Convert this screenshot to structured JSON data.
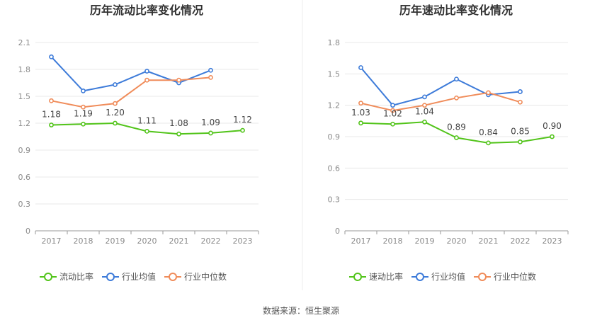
{
  "chart_data": [
    {
      "type": "line",
      "title": "历年流动比率变化情况",
      "categories": [
        "2017",
        "2018",
        "2019",
        "2020",
        "2021",
        "2022",
        "2023"
      ],
      "ylim": [
        0,
        2.1
      ],
      "yticks": [
        "0",
        "0.3",
        "0.6",
        "0.9",
        "1.2",
        "1.5",
        "1.8",
        "2.1"
      ],
      "grid": true,
      "legend_position": "bottom",
      "series": [
        {
          "name": "流动比率",
          "color": "#52c41a",
          "values": [
            1.18,
            1.19,
            1.2,
            1.11,
            1.08,
            1.09,
            1.12
          ],
          "labels": [
            "1.18",
            "1.19",
            "1.20",
            "1.11",
            "1.08",
            "1.09",
            "1.12"
          ]
        },
        {
          "name": "行业均值",
          "color": "#3d7bd9",
          "values": [
            1.94,
            1.56,
            1.63,
            1.78,
            1.65,
            1.79,
            null
          ]
        },
        {
          "name": "行业中位数",
          "color": "#f08c5a",
          "values": [
            1.45,
            1.38,
            1.42,
            1.68,
            1.68,
            1.71,
            null
          ]
        }
      ]
    },
    {
      "type": "line",
      "title": "历年速动比率变化情况",
      "categories": [
        "2017",
        "2018",
        "2019",
        "2020",
        "2021",
        "2022",
        "2023"
      ],
      "ylim": [
        0,
        1.8
      ],
      "yticks": [
        "0",
        "0.3",
        "0.6",
        "0.9",
        "1.2",
        "1.5",
        "1.8"
      ],
      "grid": true,
      "legend_position": "bottom",
      "series": [
        {
          "name": "速动比率",
          "color": "#52c41a",
          "values": [
            1.03,
            1.02,
            1.04,
            0.89,
            0.84,
            0.85,
            0.9
          ],
          "labels": [
            "1.03",
            "1.02",
            "1.04",
            "0.89",
            "0.84",
            "0.85",
            "0.90"
          ]
        },
        {
          "name": "行业均值",
          "color": "#3d7bd9",
          "values": [
            1.56,
            1.2,
            1.28,
            1.45,
            1.3,
            1.33,
            null
          ]
        },
        {
          "name": "行业中位数",
          "color": "#f08c5a",
          "values": [
            1.22,
            1.15,
            1.2,
            1.27,
            1.32,
            1.23,
            null
          ]
        }
      ]
    }
  ],
  "source": "数据来源：恒生聚源"
}
